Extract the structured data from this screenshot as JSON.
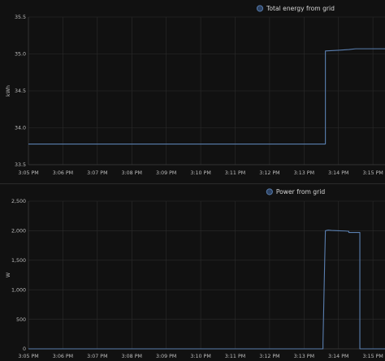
{
  "chart_data": [
    {
      "type": "line",
      "legend": "Total energy from grid",
      "legend_position": "top-center",
      "ylabel": "kWh",
      "color": "#5a7fb0",
      "ylim": [
        33.5,
        35.5
      ],
      "yticks": [
        33.5,
        34.0,
        34.5,
        35.0,
        35.5
      ],
      "ytick_labels": [
        "33.5",
        "34.0",
        "34.5",
        "35.0",
        "35.5"
      ],
      "xlim": [
        0,
        10.35
      ],
      "xticks": [
        0,
        1,
        2,
        3,
        4,
        5,
        6,
        7,
        8,
        9,
        10
      ],
      "xtick_labels": [
        "3:05 PM",
        "3:06 PM",
        "3:07 PM",
        "3:08 PM",
        "3:09 PM",
        "3:10 PM",
        "3:11 PM",
        "3:12 PM",
        "3:13 PM",
        "3:14 PM",
        "3:15 PM"
      ],
      "grid": true,
      "x": [
        0,
        8.62,
        8.62,
        9.0,
        9.3,
        9.5,
        9.8,
        10.35
      ],
      "y": [
        33.78,
        33.78,
        35.04,
        35.05,
        35.06,
        35.07,
        35.07,
        35.07
      ]
    },
    {
      "type": "line",
      "legend": "Power from grid",
      "legend_position": "top-center",
      "ylabel": "W",
      "color": "#5a7fb0",
      "ylim": [
        0,
        2500
      ],
      "yticks": [
        0,
        500,
        1000,
        1500,
        2000,
        2500
      ],
      "ytick_labels": [
        "0",
        "500",
        "1,000",
        "1,500",
        "2,000",
        "2,500"
      ],
      "xlim": [
        0,
        10.35
      ],
      "xticks": [
        0,
        1,
        2,
        3,
        4,
        5,
        6,
        7,
        8,
        9,
        10
      ],
      "xtick_labels": [
        "3:05 PM",
        "3:06 PM",
        "3:07 PM",
        "3:08 PM",
        "3:09 PM",
        "3:10 PM",
        "3:11 PM",
        "3:12 PM",
        "3:13 PM",
        "3:14 PM",
        "3:15 PM"
      ],
      "grid": true,
      "x": [
        0,
        8.55,
        8.55,
        8.6,
        8.62,
        8.7,
        8.8,
        9.0,
        9.2,
        9.3,
        9.3,
        9.62,
        9.62,
        9.7,
        9.7,
        10.35
      ],
      "y": [
        0,
        0,
        100,
        1500,
        2000,
        2010,
        2005,
        2000,
        1995,
        1990,
        1970,
        1970,
        0,
        0,
        0,
        0
      ]
    }
  ]
}
